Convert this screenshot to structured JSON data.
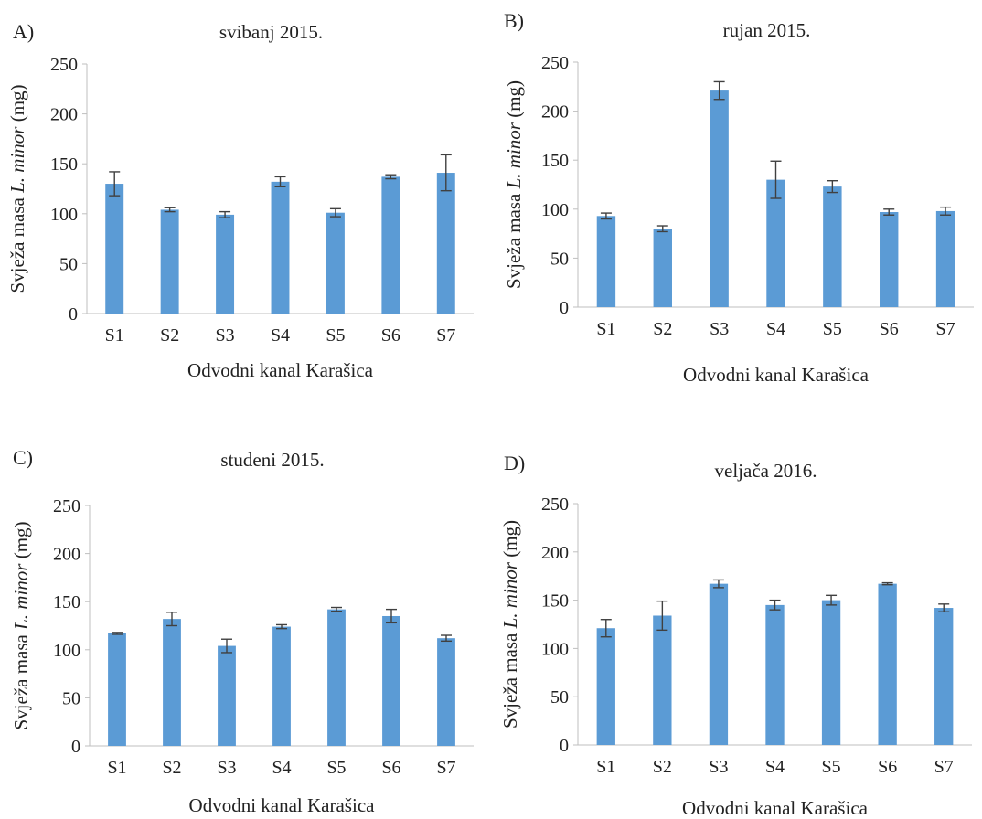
{
  "chart_data": [
    {
      "type": "bar",
      "panel_label": "A)",
      "title": "svibanj 2015.",
      "xlabel": "Odvodni kanal Karašica",
      "ylabel_prefix": "Svježa masa ",
      "ylabel_italic": "L. minor",
      "ylabel_suffix": " (mg)",
      "ylim": [
        0,
        250
      ],
      "yticks": [
        "0",
        "50",
        "100",
        "150",
        "200",
        "250"
      ],
      "categories": [
        "S1",
        "S2",
        "S3",
        "S4",
        "S5",
        "S6",
        "S7"
      ],
      "values": [
        130,
        104,
        99,
        132,
        101,
        137,
        141
      ],
      "errors": [
        12,
        2,
        3,
        5,
        4,
        2,
        18
      ],
      "color": "#5b9bd5"
    },
    {
      "type": "bar",
      "panel_label": "B)",
      "title": "rujan 2015.",
      "xlabel": "Odvodni kanal Karašica",
      "ylabel_prefix": "Svježa masa ",
      "ylabel_italic": "L. minor",
      "ylabel_suffix": " (mg)",
      "ylim": [
        0,
        250
      ],
      "yticks": [
        "0",
        "50",
        "100",
        "150",
        "200",
        "250"
      ],
      "categories": [
        "S1",
        "S2",
        "S3",
        "S4",
        "S5",
        "S6",
        "S7"
      ],
      "values": [
        93,
        80,
        221,
        130,
        123,
        97,
        98
      ],
      "errors": [
        3,
        3,
        9,
        19,
        6,
        3,
        4
      ],
      "color": "#5b9bd5"
    },
    {
      "type": "bar",
      "panel_label": "C)",
      "title": "studeni 2015.",
      "xlabel": "Odvodni kanal Karašica",
      "ylabel_prefix": "Svježa masa ",
      "ylabel_italic": "L. minor",
      "ylabel_suffix": " (mg)",
      "ylim": [
        0,
        250
      ],
      "yticks": [
        "0",
        "50",
        "100",
        "150",
        "200",
        "250"
      ],
      "categories": [
        "S1",
        "S2",
        "S3",
        "S4",
        "S5",
        "S6",
        "S7"
      ],
      "values": [
        117,
        132,
        104,
        124,
        142,
        135,
        112
      ],
      "errors": [
        1,
        7,
        7,
        2,
        2,
        7,
        3
      ],
      "color": "#5b9bd5"
    },
    {
      "type": "bar",
      "panel_label": "D)",
      "title": "veljača 2016.",
      "xlabel": "Odvodni kanal Karašica",
      "ylabel_prefix": "Svježa masa ",
      "ylabel_italic": "L. minor",
      "ylabel_suffix": " (mg)",
      "ylim": [
        0,
        250
      ],
      "yticks": [
        "0",
        "50",
        "100",
        "150",
        "200",
        "250"
      ],
      "categories": [
        "S1",
        "S2",
        "S3",
        "S4",
        "S5",
        "S6",
        "S7"
      ],
      "values": [
        121,
        134,
        167,
        145,
        150,
        167,
        142
      ],
      "errors": [
        9,
        15,
        4,
        5,
        5,
        1,
        4
      ],
      "color": "#5b9bd5"
    }
  ]
}
